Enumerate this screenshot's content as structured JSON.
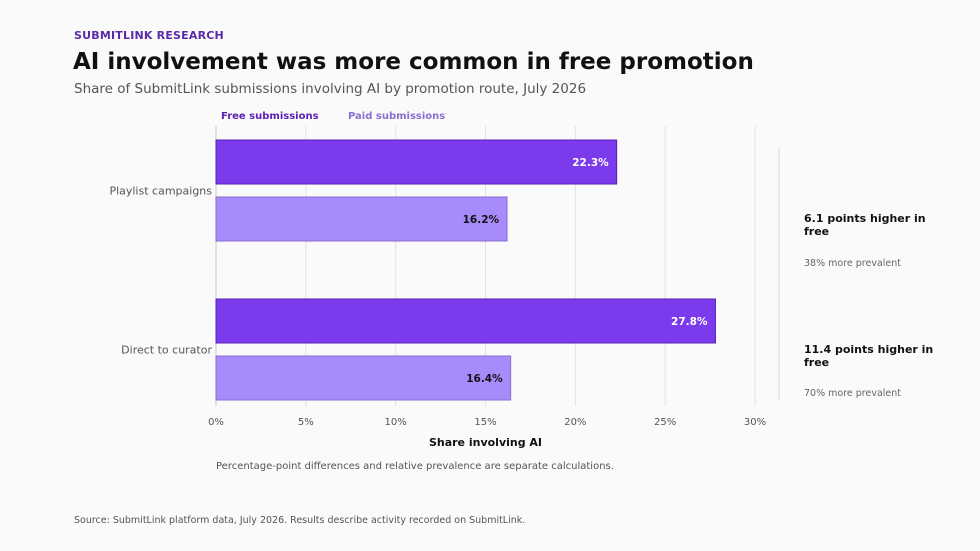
{
  "eyebrow": "SUBMITLINK RESEARCH",
  "title": "AI involvement was more common in free promotion",
  "subtitle": "Share of SubmitLink submissions involving AI by promotion route, July 2026",
  "note": "Percentage-point differences and relative prevalence are separate calculations.",
  "footer": "Source: SubmitLink platform data, July 2026. Results describe activity recorded on SubmitLink.",
  "colors": {
    "free": "#7c3aed",
    "paid": "#a78bfa",
    "free_label": "#5b21b6",
    "paid_label": "#8b6fd0"
  },
  "callouts": [
    {
      "headline": "6.1 points higher in free",
      "detail": "38% more prevalent"
    },
    {
      "headline": "11.4 points higher in free",
      "detail": "70% more prevalent"
    }
  ],
  "chart_data": {
    "type": "bar",
    "orientation": "horizontal",
    "categories": [
      "Playlist campaigns",
      "Direct to curator"
    ],
    "series": [
      {
        "name": "Free submissions",
        "values": [
          22.3,
          27.8
        ],
        "labels": [
          "22.3%",
          "27.8%"
        ]
      },
      {
        "name": "Paid submissions",
        "values": [
          16.2,
          16.4
        ],
        "labels": [
          "16.2%",
          "16.4%"
        ]
      }
    ],
    "xlabel": "Share involving AI",
    "xlim": [
      0,
      30
    ],
    "xticks": [
      0,
      5,
      10,
      15,
      20,
      25,
      30
    ],
    "xtick_labels": [
      "0%",
      "5%",
      "10%",
      "15%",
      "20%",
      "25%",
      "30%"
    ],
    "grid": true,
    "legend_position": "top-left"
  }
}
